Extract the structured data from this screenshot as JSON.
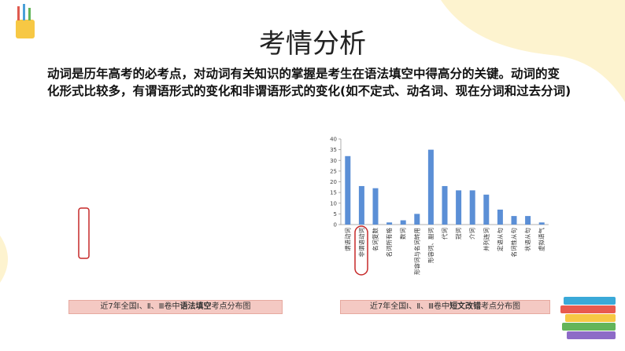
{
  "title": "考情分析",
  "paragraph": [
    "动词是历年高考的必考点，对动词有关知识的掌握是考生在语法填空中得高分的关键。动词的变",
    "化形式比较多，有谓语形式的变化和非谓语形式的变化(如不定式、动名词、现在分词和过去分词)"
  ],
  "caption_left": [
    "近7年全国Ⅰ、Ⅱ、Ⅲ卷中",
    "语法填空",
    "考点分布图"
  ],
  "caption_right": [
    "近7年全国Ⅰ、Ⅱ、Ⅲ卷中",
    "短文改错",
    "考点分布图"
  ],
  "chart_data": {
    "type": "bar",
    "categories": [
      "谓语动词",
      "非谓语动词",
      "名词复数",
      "名词所有格",
      "数词",
      "形容词与名词转用",
      "形容词、副词",
      "代词",
      "冠词",
      "介词",
      "并列连词",
      "定语从句",
      "名词性从句",
      "状语从句",
      "虚拟语气"
    ],
    "values": [
      32,
      18,
      17,
      1,
      2,
      5,
      35,
      18,
      16,
      16,
      14,
      7,
      4,
      4,
      1
    ],
    "color": "#5b8fd6",
    "ylim": [
      0,
      40
    ],
    "yticks": [
      0,
      5,
      10,
      15,
      20,
      25,
      30,
      35,
      40
    ],
    "grid": false
  }
}
